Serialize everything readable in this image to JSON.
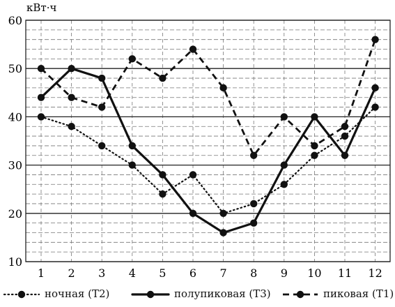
{
  "chart_data": {
    "type": "line",
    "ylabel": "кВт·ч",
    "xlabel": "",
    "title": "",
    "categories": [
      "1",
      "2",
      "3",
      "4",
      "5",
      "6",
      "7",
      "8",
      "9",
      "10",
      "11",
      "12"
    ],
    "ylim": [
      10,
      60
    ],
    "yticks": [
      10,
      20,
      30,
      40,
      50,
      60
    ],
    "grid": true,
    "legend_position": "bottom",
    "series": [
      {
        "name": "ночная (Т2)",
        "style": "dotted",
        "values": [
          40,
          38,
          34,
          30,
          24,
          28,
          20,
          22,
          26,
          32,
          36,
          42
        ]
      },
      {
        "name": "полупиковая (Т3)",
        "style": "solid",
        "values": [
          44,
          50,
          48,
          34,
          28,
          20,
          16,
          18,
          30,
          40,
          32,
          46
        ]
      },
      {
        "name": "пиковая (Т1)",
        "style": "dashed",
        "values": [
          50,
          44,
          42,
          52,
          48,
          54,
          46,
          32,
          40,
          34,
          38,
          56
        ]
      }
    ]
  },
  "colors": {
    "line": "#111111",
    "grid_major": "#222222",
    "grid_minor": "#777777",
    "background": "#ffffff"
  }
}
